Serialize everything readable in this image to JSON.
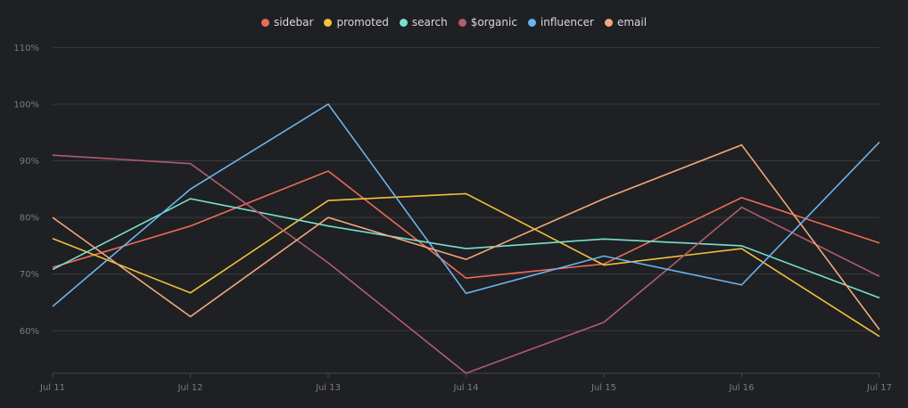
{
  "chart_data": {
    "type": "line",
    "categories": [
      "Jul 11",
      "Jul 12",
      "Jul 13",
      "Jul 14",
      "Jul 15",
      "Jul 16",
      "Jul 17"
    ],
    "y_ticks": [
      "60%",
      "70%",
      "80%",
      "90%",
      "100%",
      "110%"
    ],
    "ylim": [
      52.5,
      111
    ],
    "grid": true,
    "legend_position": "top-center",
    "series": [
      {
        "name": "sidebar",
        "color": "#ee6b57",
        "values": [
          71.2,
          78.5,
          88.2,
          69.3,
          71.8,
          83.5,
          75.5
        ]
      },
      {
        "name": "promoted",
        "color": "#f4c13a",
        "values": [
          76.3,
          66.7,
          83.0,
          84.2,
          71.6,
          74.5,
          59.0
        ]
      },
      {
        "name": "search",
        "color": "#79e0d2",
        "values": [
          70.8,
          83.3,
          78.5,
          74.5,
          76.2,
          75.0,
          65.8
        ]
      },
      {
        "name": "$organic",
        "color": "#b05d6c",
        "values": [
          91.0,
          89.5,
          72.0,
          52.5,
          61.5,
          81.8,
          69.6
        ]
      },
      {
        "name": "influencer",
        "color": "#6ab4ef",
        "values": [
          64.3,
          85.0,
          100.0,
          66.6,
          73.2,
          68.1,
          93.3
        ]
      },
      {
        "name": "email",
        "color": "#f2a97b",
        "values": [
          80.0,
          62.5,
          80.0,
          72.6,
          83.3,
          92.8,
          60.2
        ]
      }
    ]
  }
}
